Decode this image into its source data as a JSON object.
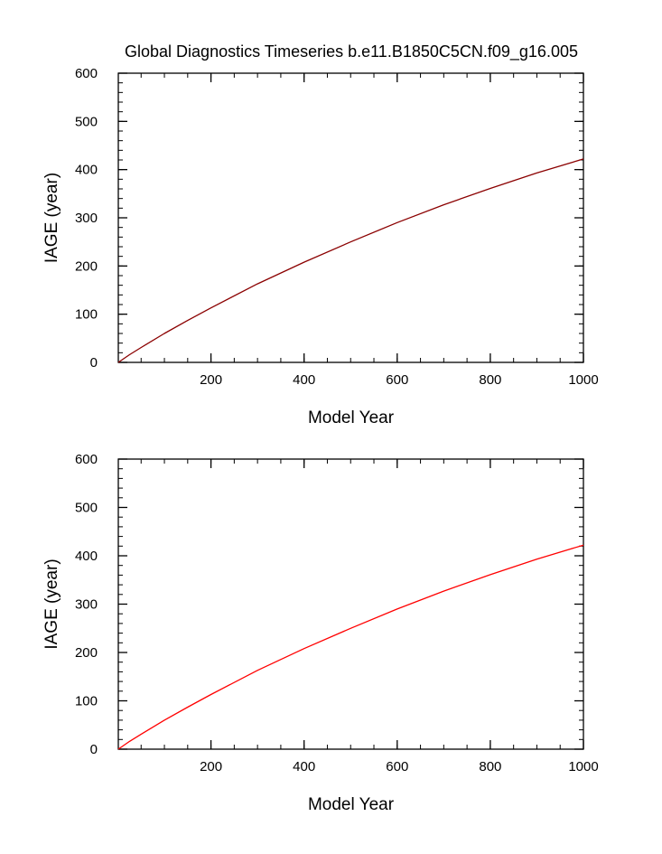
{
  "figure": {
    "title": "Global Diagnostics Timeseries b.e11.B1850C5CN.f09_g16.005"
  },
  "chart_data": [
    {
      "type": "line",
      "xlabel": "Model Year",
      "ylabel": "IAGE (year)",
      "xlim": [
        1,
        1000
      ],
      "ylim": [
        0,
        600
      ],
      "xticks": [
        200,
        400,
        600,
        800,
        1000
      ],
      "yticks": [
        0,
        100,
        200,
        300,
        400,
        500,
        600
      ],
      "xtick_labels": [
        "200",
        "400",
        "600",
        "800",
        "1000"
      ],
      "ytick_labels": [
        "0",
        "100",
        "200",
        "300",
        "400",
        "500",
        "600"
      ],
      "grid": false,
      "series": [
        {
          "color": "#8b0000",
          "x": [
            1,
            25,
            50,
            100,
            150,
            200,
            300,
            400,
            500,
            600,
            700,
            800,
            900,
            1000
          ],
          "y": [
            0,
            16,
            31,
            60,
            87,
            113,
            163,
            208,
            250,
            290,
            327,
            361,
            393,
            422
          ]
        }
      ]
    },
    {
      "type": "line",
      "xlabel": "Model Year",
      "ylabel": "IAGE (year)",
      "xlim": [
        1,
        1000
      ],
      "ylim": [
        0,
        600
      ],
      "xticks": [
        200,
        400,
        600,
        800,
        1000
      ],
      "yticks": [
        0,
        100,
        200,
        300,
        400,
        500,
        600
      ],
      "xtick_labels": [
        "200",
        "400",
        "600",
        "800",
        "1000"
      ],
      "ytick_labels": [
        "0",
        "100",
        "200",
        "300",
        "400",
        "500",
        "600"
      ],
      "grid": false,
      "series": [
        {
          "color": "#ff0000",
          "x": [
            1,
            25,
            50,
            100,
            150,
            200,
            300,
            400,
            500,
            600,
            700,
            800,
            900,
            1000
          ],
          "y": [
            0,
            16,
            31,
            60,
            87,
            113,
            163,
            208,
            250,
            290,
            327,
            361,
            393,
            422
          ]
        }
      ]
    }
  ]
}
